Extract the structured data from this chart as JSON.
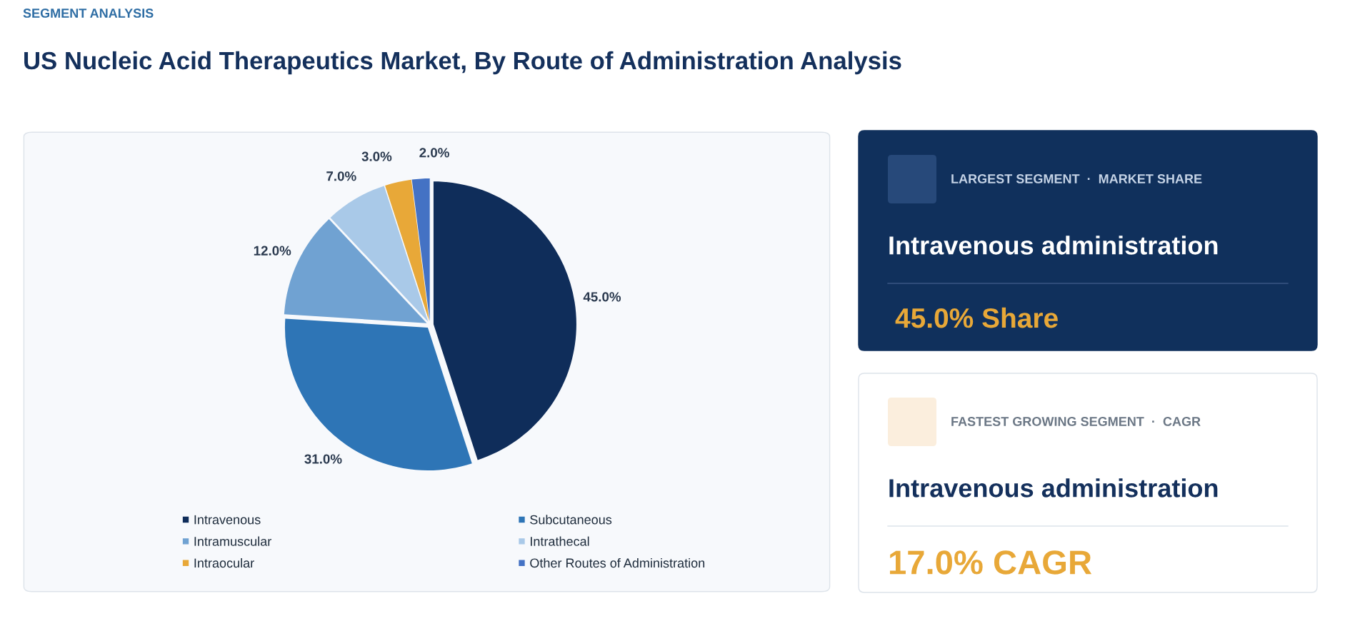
{
  "chart_data": [
    {
      "type": "pie",
      "subtitle": "SEGMENT ANALYSIS",
      "title": "US Nucleic Acid Therapeutics Market, By Route of Administration Analysis",
      "categories": [
        "Intravenous",
        "Subcutaneous",
        "Intramuscular",
        "Intrathecal",
        "Intraocular",
        "Other Routes of Administration"
      ],
      "values": [
        45.0,
        31.0,
        12.0,
        7.0,
        3.0,
        2.0
      ],
      "value_labels": [
        "45.0%",
        "31.0%",
        "12.0%",
        "7.0%",
        "3.0%",
        "2.0%"
      ],
      "colors": [
        "#0f2d5a",
        "#2e75b6",
        "#70a2d2",
        "#a9c9e8",
        "#e8a838",
        "#4472c4"
      ],
      "legend": "bottom"
    },
    {
      "type": "other",
      "title": "LARGEST SEGMENT  ·  MARKET SHARE",
      "annotations": [
        "Intravenous administration",
        "45.0% Share"
      ]
    },
    {
      "type": "other",
      "title": "FASTEST GROWING SEGMENT  ·  CAGR",
      "annotations": [
        "Intravenous administration",
        "17.0% CAGR"
      ]
    }
  ]
}
